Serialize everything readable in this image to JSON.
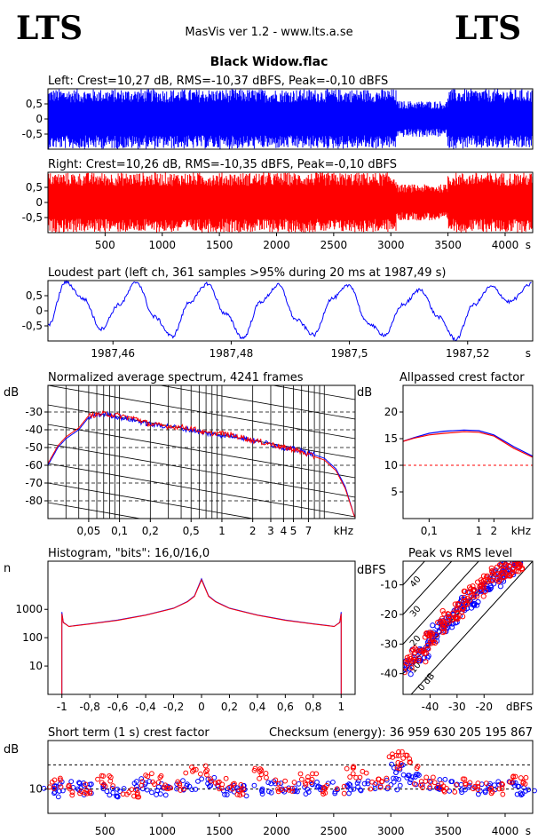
{
  "header": {
    "logo_left": "LTS",
    "logo_right": "LTS",
    "app_title": "MasVis ver 1.2 - www.lts.a.se",
    "file_name": "Black Widow.flac"
  },
  "colors": {
    "left": "#0000ff",
    "right": "#ff0000"
  },
  "chart_data": [
    {
      "id": "left_waveform",
      "type": "area",
      "title": "Left: Crest=10,27 dB, RMS=-10,37 dBFS, Peak=-0,10 dBFS",
      "ylim": [
        -1,
        1
      ],
      "y_ticks": [
        "0,5",
        "0",
        "-0,5"
      ],
      "y_tick_values": [
        0.5,
        0,
        -0.5
      ],
      "xlim": [
        0,
        4241
      ],
      "color": "#0000ff",
      "segments": [
        {
          "x0": 0,
          "x1": 3050,
          "amplitude": 0.99
        },
        {
          "x0": 3050,
          "x1": 3500,
          "amplitude": 0.6
        },
        {
          "x0": 3500,
          "x1": 4241,
          "amplitude": 0.99
        }
      ]
    },
    {
      "id": "right_waveform",
      "type": "area",
      "title": "Right: Crest=10,26 dB, RMS=-10,35 dBFS, Peak=-0,10 dBFS",
      "ylim": [
        -1,
        1
      ],
      "y_ticks": [
        "0,5",
        "0",
        "-0,5"
      ],
      "y_tick_values": [
        0.5,
        0,
        -0.5
      ],
      "xlim": [
        0,
        4241
      ],
      "x_ticks": [
        "500",
        "1000",
        "1500",
        "2000",
        "2500",
        "3000",
        "3500",
        "4000"
      ],
      "x_tick_values": [
        500,
        1000,
        1500,
        2000,
        2500,
        3000,
        3500,
        4000
      ],
      "x_unit": "s",
      "color": "#ff0000",
      "segments": [
        {
          "x0": 0,
          "x1": 3050,
          "amplitude": 0.99
        },
        {
          "x0": 3050,
          "x1": 3500,
          "amplitude": 0.6
        },
        {
          "x0": 3500,
          "x1": 4241,
          "amplitude": 0.99
        }
      ]
    },
    {
      "id": "loudest_part",
      "type": "line",
      "title": "Loudest part (left  ch, 361 samples >95% during 20 ms at 1987,49 s)",
      "ylim": [
        -1,
        1
      ],
      "y_ticks": [
        "0,5",
        "0",
        "-0,5"
      ],
      "y_tick_values": [
        0.5,
        0,
        -0.5
      ],
      "xlim": [
        1987.449,
        1987.531
      ],
      "x_ticks": [
        "1987,46",
        "1987,48",
        "1987,5",
        "1987,52"
      ],
      "x_tick_values": [
        1987.46,
        1987.48,
        1987.5,
        1987.52
      ],
      "x_unit": "s",
      "color": "#0000ff",
      "x": [
        1987.449,
        1987.452,
        1987.455,
        1987.458,
        1987.461,
        1987.464,
        1987.467,
        1987.47,
        1987.473,
        1987.476,
        1987.479,
        1987.482,
        1987.485,
        1987.488,
        1987.491,
        1987.494,
        1987.497,
        1987.5,
        1987.503,
        1987.506,
        1987.509,
        1987.512,
        1987.515,
        1987.518,
        1987.521,
        1987.524,
        1987.527,
        1987.531
      ],
      "y": [
        -0.5,
        0.95,
        0.4,
        -0.6,
        0.2,
        0.95,
        -0.2,
        -0.85,
        0.3,
        0.9,
        -0.1,
        -0.9,
        0.3,
        0.85,
        -0.3,
        -0.8,
        0.4,
        0.85,
        -0.4,
        -0.8,
        0.2,
        0.7,
        -0.2,
        -0.95,
        0.2,
        0.8,
        0.3,
        0.9
      ]
    },
    {
      "id": "spectrum",
      "type": "line",
      "title": "Normalized average spectrum, 4241 frames",
      "ylabel": "dB",
      "y_ticks": [
        "-30",
        "-40",
        "-50",
        "-60",
        "-70",
        "-80"
      ],
      "y_tick_values": [
        -30,
        -40,
        -50,
        -60,
        -70,
        -80
      ],
      "ylim": [
        -90,
        -15
      ],
      "x_scale": "log",
      "xlim": [
        0.02,
        20
      ],
      "x_ticks": [
        "0,05",
        "0,1",
        "0,2",
        "0,5",
        "1",
        "2",
        "3",
        "4",
        "5",
        "7"
      ],
      "x_tick_values": [
        0.05,
        0.1,
        0.2,
        0.5,
        1,
        2,
        3,
        4,
        5,
        7
      ],
      "x_unit": "kHz",
      "series": [
        {
          "color": "#0000ff",
          "x": [
            0.02,
            0.025,
            0.03,
            0.04,
            0.05,
            0.07,
            0.1,
            0.15,
            0.2,
            0.3,
            0.5,
            0.7,
            1,
            1.5,
            2,
            3,
            4,
            5,
            7,
            10,
            13,
            16,
            20
          ],
          "y": [
            -60,
            -50,
            -45,
            -40,
            -33,
            -31,
            -33,
            -35,
            -37,
            -38,
            -40,
            -42,
            -43,
            -44,
            -46,
            -48,
            -50,
            -51,
            -53,
            -56,
            -62,
            -72,
            -90
          ]
        },
        {
          "color": "#ff0000",
          "x": [
            0.02,
            0.025,
            0.03,
            0.04,
            0.05,
            0.07,
            0.1,
            0.15,
            0.2,
            0.3,
            0.5,
            0.7,
            1,
            1.5,
            2,
            3,
            4,
            5,
            7,
            10,
            13,
            16,
            20
          ],
          "y": [
            -59,
            -49,
            -44,
            -39,
            -32,
            -31,
            -32,
            -34,
            -37,
            -38,
            -39,
            -42,
            -42,
            -44,
            -46,
            -48,
            -50,
            -51,
            -54,
            -57,
            -63,
            -73,
            -90
          ]
        }
      ]
    },
    {
      "id": "allpassed_crest",
      "type": "line",
      "title": "Allpassed crest factor",
      "ylabel": "dB",
      "y_ticks": [
        "20",
        "15",
        "10",
        "5"
      ],
      "y_tick_values": [
        20,
        15,
        10,
        5
      ],
      "ylim": [
        0,
        25
      ],
      "reference_line": 10,
      "x_scale": "log",
      "xlim": [
        0.03,
        12
      ],
      "x_ticks": [
        "0,1",
        "1",
        "2"
      ],
      "x_tick_values": [
        0.1,
        1,
        2
      ],
      "x_unit": "kHz",
      "series": [
        {
          "color": "#0000ff",
          "x": [
            0.03,
            0.05,
            0.1,
            0.2,
            0.5,
            1,
            2,
            5,
            12
          ],
          "y": [
            14.5,
            15.2,
            16.0,
            16.4,
            16.6,
            16.5,
            15.7,
            13.5,
            11.7
          ]
        },
        {
          "color": "#ff0000",
          "x": [
            0.03,
            0.05,
            0.1,
            0.2,
            0.5,
            1,
            2,
            5,
            12
          ],
          "y": [
            14.5,
            15.1,
            15.7,
            16.0,
            16.3,
            16.2,
            15.5,
            13.2,
            11.5
          ]
        }
      ]
    },
    {
      "id": "histogram",
      "type": "line",
      "title": "Histogram, \"bits\": 16,0/16,0",
      "ylabel": "n",
      "y_scale": "log",
      "y_ticks": [
        "1000",
        "100",
        "10"
      ],
      "y_tick_values": [
        1000,
        100,
        10
      ],
      "ylim": [
        1,
        50000
      ],
      "xlim": [
        -1.1,
        1.1
      ],
      "x_ticks": [
        "-1",
        "-0,8",
        "-0,6",
        "-0,4",
        "-0,2",
        "0",
        "0,2",
        "0,4",
        "0,6",
        "0,8",
        "1"
      ],
      "x_tick_values": [
        -1,
        -0.8,
        -0.6,
        -0.4,
        -0.2,
        0,
        0.2,
        0.4,
        0.6,
        0.8,
        1
      ],
      "series": [
        {
          "color": "#0000ff",
          "x": [
            -1,
            -0.99,
            -0.95,
            -0.9,
            -0.8,
            -0.6,
            -0.4,
            -0.2,
            -0.1,
            -0.05,
            0,
            0.05,
            0.1,
            0.2,
            0.4,
            0.6,
            0.8,
            0.9,
            0.95,
            0.99,
            1
          ],
          "y": [
            800,
            350,
            250,
            270,
            310,
            420,
            630,
            1100,
            1900,
            3000,
            12000,
            3000,
            1900,
            1100,
            630,
            420,
            310,
            270,
            250,
            350,
            800
          ]
        },
        {
          "color": "#ff0000",
          "x": [
            -1,
            -0.99,
            -0.95,
            -0.9,
            -0.8,
            -0.6,
            -0.4,
            -0.2,
            -0.1,
            -0.05,
            0,
            0.05,
            0.1,
            0.2,
            0.4,
            0.6,
            0.8,
            0.9,
            0.95,
            0.99,
            1
          ],
          "y": [
            700,
            340,
            250,
            265,
            305,
            410,
            620,
            1080,
            1850,
            2900,
            11000,
            2900,
            1850,
            1080,
            620,
            410,
            305,
            265,
            250,
            340,
            700
          ]
        }
      ]
    },
    {
      "id": "peak_vs_rms",
      "type": "scatter",
      "title": "Peak vs RMS level",
      "ylabel": "dBFS",
      "xlabel": "dBFS",
      "y_ticks": [
        "-10",
        "-20",
        "-30",
        "-40"
      ],
      "y_tick_values": [
        -10,
        -20,
        -30,
        -40
      ],
      "ylim": [
        -47,
        -2
      ],
      "xlim": [
        -50,
        -2
      ],
      "x_ticks": [
        "-40",
        "-30",
        "-20"
      ],
      "x_tick_values": [
        -40,
        -30,
        -20
      ],
      "diagonal_labels": [
        "40",
        "30",
        "20",
        "10",
        "0 dB"
      ],
      "series": [
        {
          "color": "#0000ff",
          "x": [
            -48,
            -45,
            -42,
            -40,
            -38,
            -35,
            -33,
            -30,
            -28,
            -25,
            -23,
            -20,
            -18,
            -15,
            -13,
            -12,
            -10,
            -8
          ],
          "y": [
            -38,
            -33,
            -32,
            -29,
            -26,
            -23,
            -22,
            -20,
            -17,
            -15,
            -14,
            -12,
            -10,
            -8,
            -6,
            -5,
            -4,
            -3
          ]
        },
        {
          "color": "#ff0000",
          "x": [
            -48,
            -46,
            -43,
            -41,
            -39,
            -36,
            -34,
            -31,
            -29,
            -26,
            -24,
            -21,
            -19,
            -16,
            -14,
            -12,
            -10,
            -8,
            -7
          ],
          "y": [
            -37,
            -34,
            -33,
            -29,
            -27,
            -24,
            -21,
            -19,
            -18,
            -14,
            -13,
            -11,
            -10,
            -7,
            -6,
            -5,
            -4,
            -3,
            -2.5
          ]
        }
      ]
    },
    {
      "id": "short_term_crest",
      "type": "scatter",
      "title": "Short term (1 s) crest factor",
      "annotation": "Checksum (energy):  36 959 630 205 195 867",
      "ylabel": "dB",
      "y_ticks": [
        "10"
      ],
      "y_tick_values": [
        10
      ],
      "ylim": [
        0,
        30
      ],
      "reference_lines": [
        10,
        20
      ],
      "xlim": [
        0,
        4241
      ],
      "x_ticks": [
        "500",
        "1000",
        "1500",
        "2000",
        "2500",
        "3000",
        "3500",
        "4000"
      ],
      "x_tick_values": [
        500,
        1000,
        1500,
        2000,
        2500,
        3000,
        3500,
        4000
      ],
      "x_unit": "s",
      "series": [
        {
          "color": "#0000ff",
          "x": [
            50,
            200,
            400,
            600,
            800,
            1000,
            1200,
            1400,
            1600,
            1800,
            2000,
            2200,
            2400,
            2600,
            2800,
            3000,
            3100,
            3200,
            3400,
            3600,
            3800,
            4000,
            4200
          ],
          "y": [
            9,
            11,
            10,
            9,
            12,
            10,
            11,
            13,
            10,
            9,
            11,
            10,
            12,
            10,
            11,
            12,
            18,
            14,
            12,
            11,
            10,
            11,
            10
          ]
        },
        {
          "color": "#ff0000",
          "x": [
            100,
            300,
            500,
            700,
            900,
            1100,
            1300,
            1500,
            1700,
            1900,
            2100,
            2300,
            2500,
            2700,
            2900,
            3050,
            3150,
            3300,
            3500,
            3700,
            3900,
            4100
          ],
          "y": [
            12,
            10,
            13,
            9,
            14,
            11,
            18,
            12,
            10,
            16,
            11,
            14,
            10,
            17,
            12,
            24,
            20,
            13,
            11,
            12,
            10,
            13
          ]
        }
      ]
    }
  ]
}
